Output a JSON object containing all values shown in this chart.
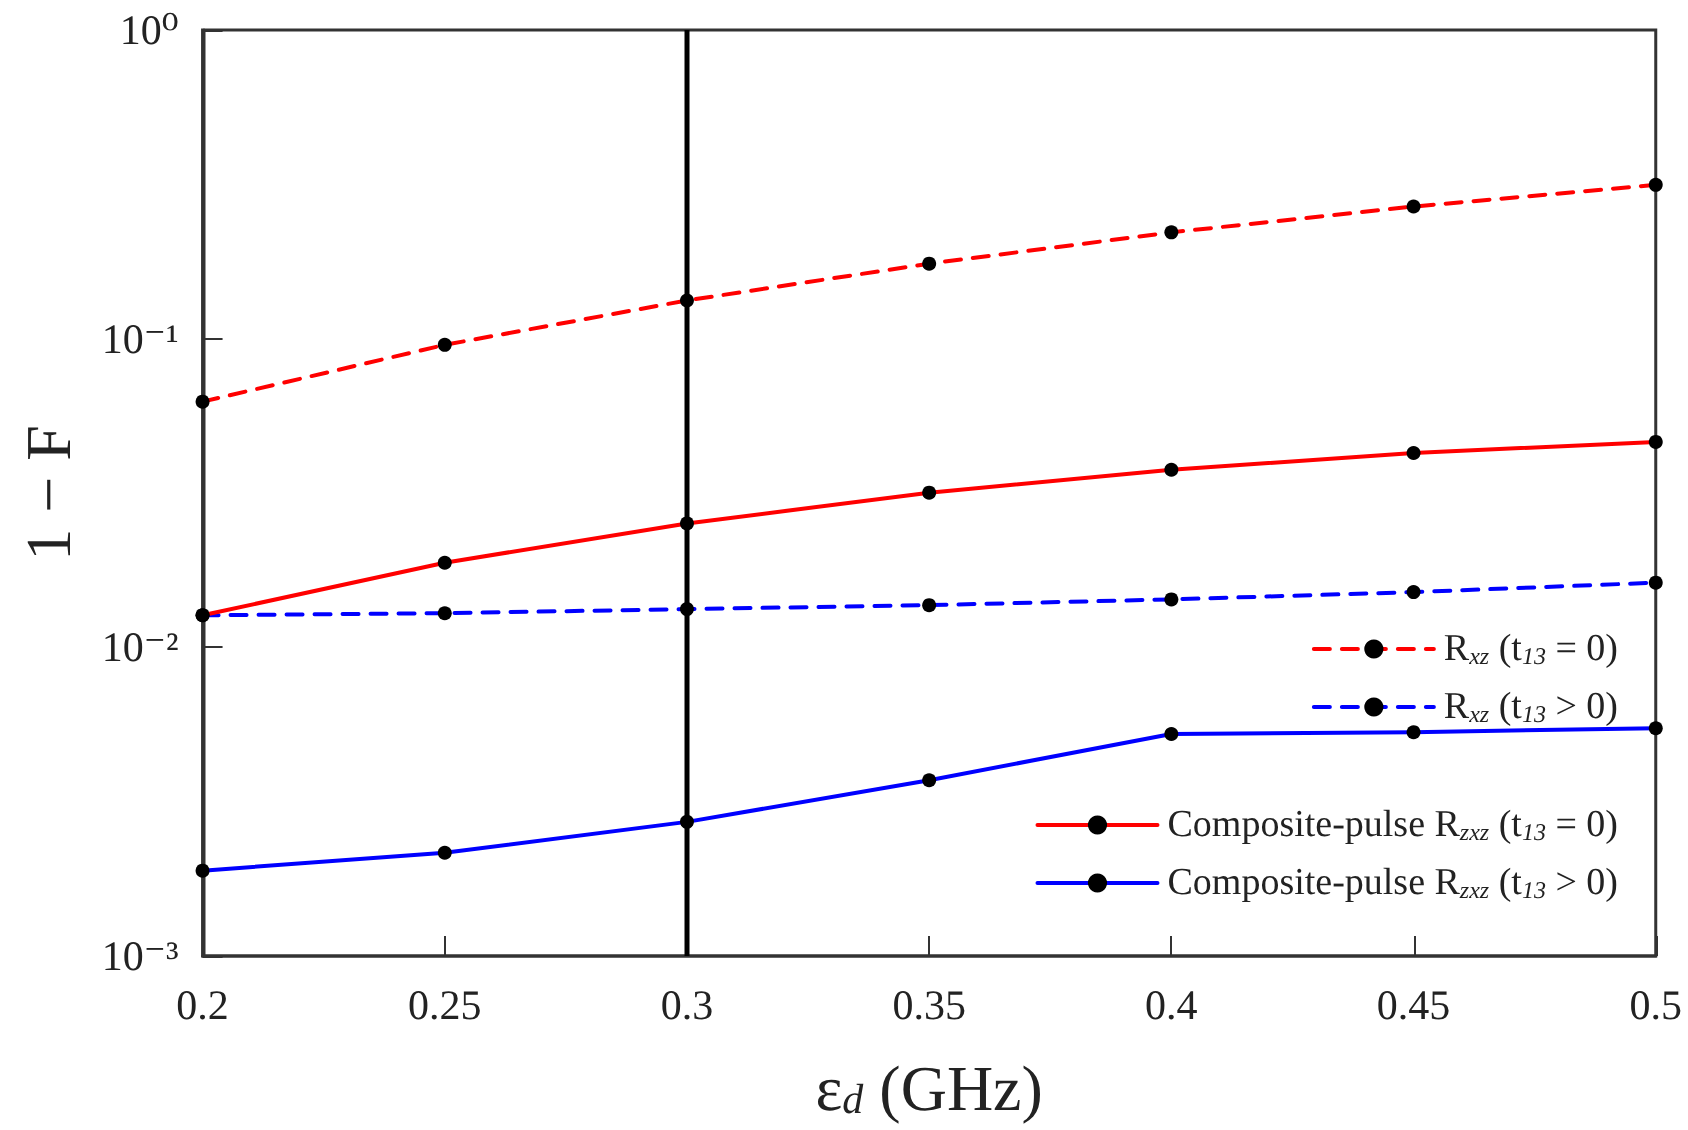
{
  "chart_data": {
    "type": "line",
    "xlabel": "ε$_{d}$ (GHz)",
    "ylabel": "1 − F",
    "x": [
      0.2,
      0.25,
      0.3,
      0.35,
      0.4,
      0.45,
      0.5
    ],
    "xlim": [
      0.2,
      0.5
    ],
    "xticks": [
      0.2,
      0.25,
      0.3,
      0.35,
      0.4,
      0.45,
      0.5
    ],
    "log": "y",
    "ylim": [
      0.001,
      1
    ],
    "yticks": [
      {
        "value": 0.001,
        "label": "10⁻³"
      },
      {
        "value": 0.01,
        "label": "10⁻²"
      },
      {
        "value": 0.1,
        "label": "10⁻¹"
      },
      {
        "value": 1,
        "label": "10⁰"
      }
    ],
    "marker": "circle",
    "grid": false,
    "legend": "bottom right",
    "ref_lines": [
      {
        "axis": "x",
        "value": 0.3,
        "color": "#000000",
        "line_style": "solid"
      }
    ],
    "series": [
      {
        "name": "R$_{xz}$ (t$_{13}$ = 0)",
        "color": "#ff0000",
        "line_style": "dashed",
        "values": [
          0.0625,
          0.0955,
          0.133,
          0.175,
          0.221,
          0.268,
          0.315
        ]
      },
      {
        "name": "R$_{xz}$ (t$_{13}$ > 0)",
        "color": "#0000ff",
        "line_style": "dashed",
        "values": [
          0.0127,
          0.0129,
          0.0133,
          0.0137,
          0.0143,
          0.0151,
          0.0162
        ]
      },
      {
        "name": "Composite-pulse R$_{zxz}$ (t$_{13}$ = 0)",
        "color": "#ff0000",
        "line_style": "solid",
        "values": [
          0.0127,
          0.0188,
          0.0252,
          0.0317,
          0.0376,
          0.0426,
          0.0463
        ]
      },
      {
        "name": "Composite-pulse R$_{zxz}$ (t$_{13}$ > 0)",
        "color": "#0000ff",
        "line_style": "solid",
        "values": [
          0.00189,
          0.00216,
          0.00272,
          0.00371,
          0.00524,
          0.00531,
          0.00547
        ]
      }
    ]
  }
}
